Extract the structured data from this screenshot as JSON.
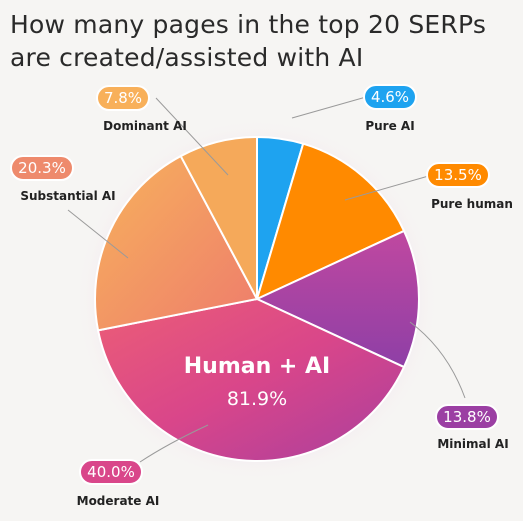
{
  "chart_data": {
    "type": "pie",
    "title": "How many pages in the top 20 SERPs are created/assisted with AI",
    "slices": [
      {
        "label": "Pure AI",
        "value": 4.6,
        "display": "4.6%",
        "color": "#1ea3f0"
      },
      {
        "label": "Pure human",
        "value": 13.5,
        "display": "13.5%",
        "color": "#ff8a00"
      },
      {
        "label": "Minimal AI",
        "value": 13.8,
        "display": "13.8%",
        "color": "#9b3fa3"
      },
      {
        "label": "Moderate AI",
        "value": 40.0,
        "display": "40.0%",
        "color": "#d9468a"
      },
      {
        "label": "Substantial AI",
        "value": 20.3,
        "display": "20.3%",
        "color": "#ee8a6c"
      },
      {
        "label": "Dominant AI",
        "value": 7.8,
        "display": "7.8%",
        "color": "#f8b05a"
      }
    ],
    "center": {
      "label": "Human + AI",
      "value": "81.9%"
    }
  }
}
